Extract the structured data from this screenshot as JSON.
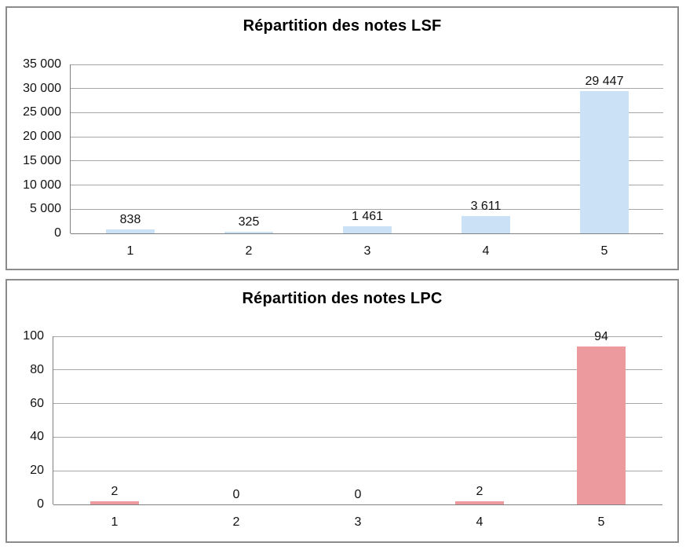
{
  "colors": {
    "panel_border": "#8C8C8C",
    "gridline": "#A6A6A6",
    "axis": "#808080",
    "text": "#111111",
    "lsf_bar": "#CBE2F6",
    "lpc_bar": "#EC9A9D"
  },
  "chart_data": [
    {
      "type": "bar",
      "title": "Répartition des notes LSF",
      "categories": [
        "1",
        "2",
        "3",
        "4",
        "5"
      ],
      "values": [
        838,
        325,
        1461,
        3611,
        29447
      ],
      "value_labels": [
        "838",
        "325",
        "1 461",
        "3 611",
        "29 447"
      ],
      "ylim": [
        0,
        35000
      ],
      "ytick_step": 5000,
      "ytick_labels": [
        "0",
        "5 000",
        "10 000",
        "15 000",
        "20 000",
        "25 000",
        "30 000",
        "35 000"
      ],
      "bar_color": "#CBE2F6",
      "grid": true,
      "legend": "none"
    },
    {
      "type": "bar",
      "title": "Répartition des notes LPC",
      "categories": [
        "1",
        "2",
        "3",
        "4",
        "5"
      ],
      "values": [
        2,
        0,
        0,
        2,
        94
      ],
      "value_labels": [
        "2",
        "0",
        "0",
        "2",
        "94"
      ],
      "ylim": [
        0,
        100
      ],
      "ytick_step": 20,
      "ytick_labels": [
        "0",
        "20",
        "40",
        "60",
        "80",
        "100"
      ],
      "bar_color": "#EC9A9D",
      "grid": true,
      "legend": "none"
    }
  ]
}
